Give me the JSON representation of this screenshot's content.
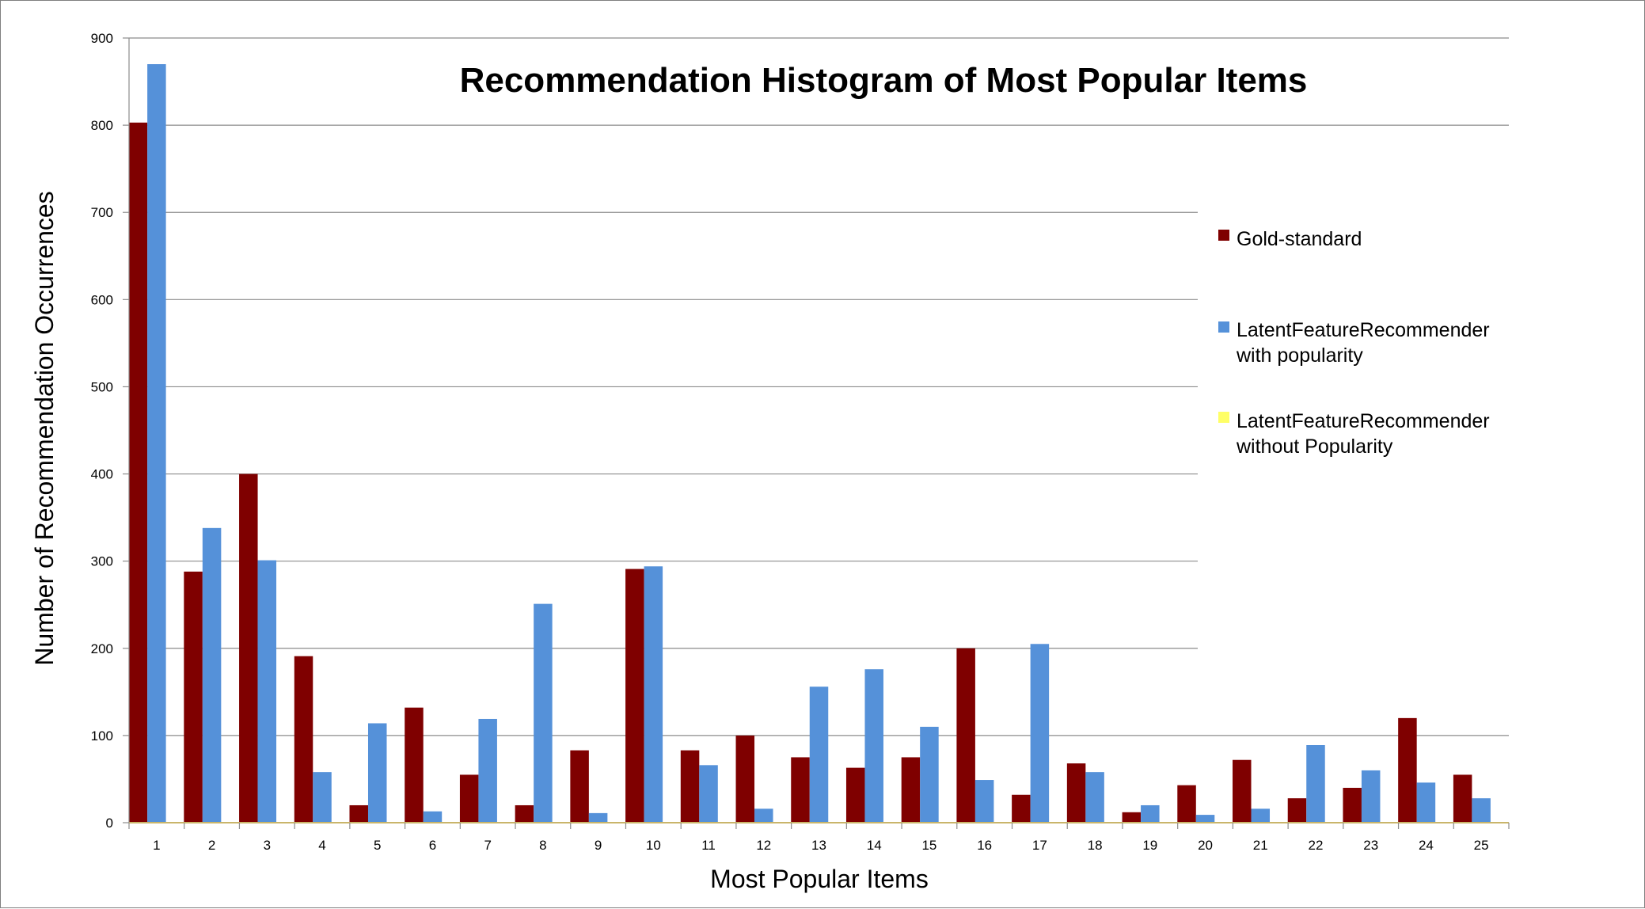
{
  "chart_data": {
    "type": "bar",
    "title": "Recommendation Histogram of Most Popular Items",
    "xlabel": "Most Popular Items",
    "ylabel": "Number of Recommendation Occurrences",
    "ylim": [
      0,
      900
    ],
    "yticks": [
      0,
      100,
      200,
      300,
      400,
      500,
      600,
      700,
      800,
      900
    ],
    "grid": true,
    "legend_position": "right",
    "categories": [
      "1",
      "2",
      "3",
      "4",
      "5",
      "6",
      "7",
      "8",
      "9",
      "10",
      "11",
      "12",
      "13",
      "14",
      "15",
      "16",
      "17",
      "18",
      "19",
      "20",
      "21",
      "22",
      "23",
      "24",
      "25"
    ],
    "series": [
      {
        "name": "Gold-standard",
        "color": "#7f0000",
        "values": [
          803,
          288,
          400,
          191,
          20,
          132,
          55,
          20,
          83,
          291,
          83,
          100,
          75,
          63,
          75,
          200,
          32,
          68,
          12,
          43,
          72,
          28,
          40,
          120,
          55
        ]
      },
      {
        "name_lines": [
          "LatentFeatureRecommender",
          "with popularity"
        ],
        "color": "#5591d9",
        "values": [
          870,
          338,
          301,
          58,
          114,
          13,
          119,
          251,
          11,
          294,
          66,
          16,
          156,
          176,
          110,
          49,
          205,
          58,
          20,
          9,
          16,
          89,
          60,
          46,
          28
        ]
      },
      {
        "name_lines": [
          "LatentFeatureRecommender",
          "without Popularity"
        ],
        "color": "#ffff66",
        "values": [
          0,
          0,
          0,
          0,
          0,
          0,
          0,
          0,
          0,
          0,
          0,
          0,
          0,
          0,
          0,
          0,
          0,
          0,
          0,
          0,
          0,
          0,
          0,
          0,
          0
        ]
      }
    ]
  }
}
